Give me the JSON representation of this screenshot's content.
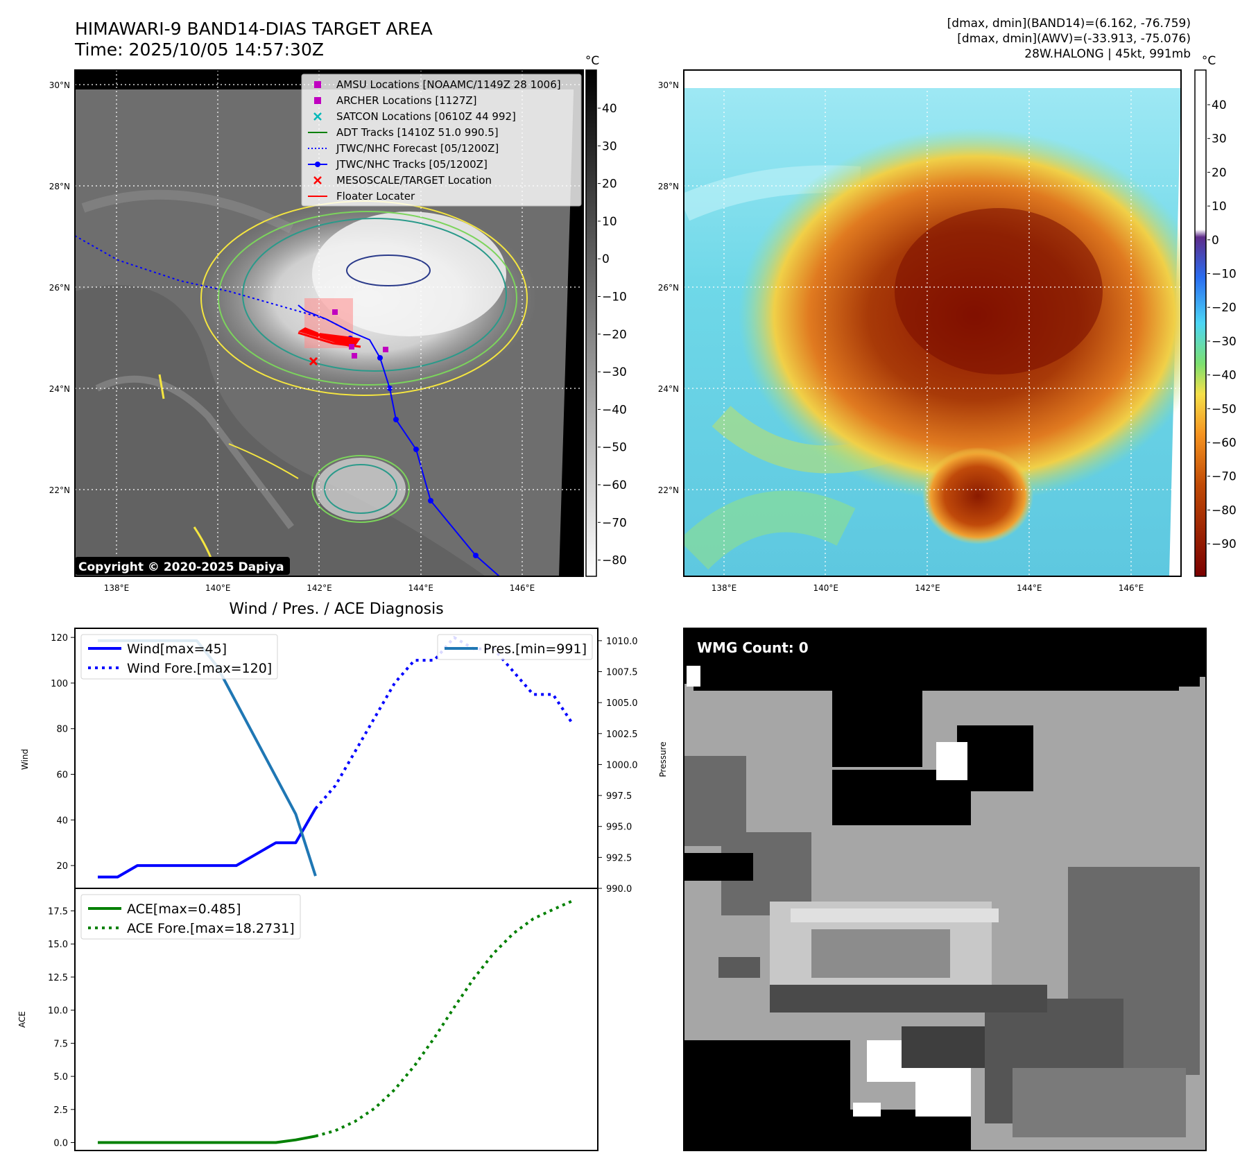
{
  "header": {
    "title_line1": "HIMAWARI-9 BAND14-DIAS TARGET AREA",
    "title_line2": "Time: 2025/10/05 14:57:30Z",
    "stats_line1": "[dmax, dmin](BAND14)=(6.162, -76.759)",
    "stats_line2": "[dmax, dmin](AWV)=(-33.913, -75.076)",
    "stats_line3": "28W.HALONG | 45kt, 991mb"
  },
  "map_ir": {
    "copyright": "Copyright © 2020-2025 Dapiya",
    "lon_ticks": [
      "138°E",
      "140°E",
      "142°E",
      "144°E",
      "146°E"
    ],
    "lat_ticks": [
      "30°N",
      "28°N",
      "26°N",
      "24°N",
      "22°N"
    ],
    "legend": [
      {
        "label": "AMSU Locations [NOAAMC/1149Z 28 1006]",
        "marker": "square",
        "color": "#c000c0"
      },
      {
        "label": "ARCHER Locations [1127Z]",
        "marker": "square",
        "color": "#c000c0"
      },
      {
        "label": "SATCON Locations [0610Z 44 992]",
        "marker": "x",
        "color": "#00b8b8"
      },
      {
        "label": "ADT Tracks [1410Z 51.0 990.5]",
        "marker": "line",
        "color": "#008000"
      },
      {
        "label": "JTWC/NHC Forecast [05/1200Z]",
        "marker": "dotted",
        "color": "#0000ff"
      },
      {
        "label": "JTWC/NHC Tracks [05/1200Z]",
        "marker": "line-dot",
        "color": "#0000ff"
      },
      {
        "label": "MESOSCALE/TARGET Location",
        "marker": "x",
        "color": "#ff0000"
      },
      {
        "label": "Floater Locater",
        "marker": "line",
        "color": "#ff0000"
      }
    ],
    "colorbar": {
      "unit": "°C",
      "ticks": [
        "40",
        "30",
        "20",
        "10",
        "0",
        "−10",
        "−20",
        "−30",
        "−40",
        "−50",
        "−60",
        "−70",
        "−80"
      ]
    }
  },
  "map_wv": {
    "lon_ticks": [
      "138°E",
      "140°E",
      "142°E",
      "144°E",
      "146°E"
    ],
    "lat_ticks": [
      "30°N",
      "28°N",
      "26°N",
      "24°N",
      "22°N"
    ],
    "colorbar": {
      "unit": "°C",
      "ticks": [
        "40",
        "30",
        "20",
        "10",
        "0",
        "−10",
        "−20",
        "−30",
        "−40",
        "−50",
        "−60",
        "−70",
        "−80",
        "−90"
      ]
    }
  },
  "chart_data": [
    {
      "type": "line",
      "title": "Wind / Pres. / ACE Diagnosis",
      "ylabel": "Wind",
      "ylabel_right": "Pressure",
      "ylim": [
        10,
        124
      ],
      "ylim_right": [
        990,
        1011
      ],
      "yticks": [
        "20",
        "40",
        "60",
        "80",
        "100",
        "120"
      ],
      "yticks_right": [
        "990.0",
        "992.5",
        "995.0",
        "997.5",
        "1000.0",
        "1002.5",
        "1005.0",
        "1007.5",
        "1010.0"
      ],
      "x_count": 25,
      "series": [
        {
          "name": "Wind[max=45]",
          "color": "#0000ff",
          "style": "solid",
          "axis": "left",
          "x": [
            0,
            1,
            2,
            3,
            4,
            5,
            6,
            7,
            8,
            9,
            10,
            11
          ],
          "values": [
            15,
            15,
            20,
            20,
            20,
            20,
            20,
            20,
            25,
            30,
            30,
            45
          ]
        },
        {
          "name": "Wind Fore.[max=120]",
          "color": "#0000ff",
          "style": "dotted",
          "axis": "left",
          "x": [
            11,
            12,
            13,
            14,
            15,
            16,
            17,
            18,
            19,
            20,
            21,
            22,
            23,
            24
          ],
          "values": [
            45,
            55,
            70,
            85,
            100,
            110,
            110,
            120,
            115,
            115,
            105,
            95,
            95,
            82
          ]
        },
        {
          "name": "Pres.[min=991]",
          "color": "#1f77b4",
          "style": "solid",
          "axis": "right",
          "x": [
            0,
            1,
            2,
            3,
            4,
            5,
            6,
            7,
            8,
            9,
            10,
            11
          ],
          "values": [
            1010,
            1010,
            1010,
            1010,
            1010,
            1010,
            1008,
            1005,
            1002,
            999,
            996,
            991
          ]
        }
      ]
    },
    {
      "type": "line",
      "ylabel": "ACE",
      "ylim": [
        -0.6,
        19.2
      ],
      "yticks": [
        "0.0",
        "2.5",
        "5.0",
        "7.5",
        "10.0",
        "12.5",
        "15.0",
        "17.5"
      ],
      "x_count": 25,
      "series": [
        {
          "name": "ACE[max=0.485]",
          "color": "#008000",
          "style": "solid",
          "x": [
            0,
            1,
            2,
            3,
            4,
            5,
            6,
            7,
            8,
            9,
            10,
            11
          ],
          "values": [
            0,
            0,
            0,
            0,
            0,
            0,
            0,
            0,
            0,
            0,
            0.2,
            0.485
          ]
        },
        {
          "name": "ACE Fore.[max=18.2731]",
          "color": "#008000",
          "style": "dotted",
          "x": [
            11,
            12,
            13,
            14,
            15,
            16,
            17,
            18,
            19,
            20,
            21,
            22,
            23,
            24
          ],
          "values": [
            0.485,
            0.9,
            1.6,
            2.6,
            4.0,
            5.8,
            7.9,
            10.2,
            12.4,
            14.3,
            15.8,
            16.9,
            17.6,
            18.27
          ]
        }
      ]
    }
  ],
  "wmg_panel": {
    "label": "WMG Count: 0"
  }
}
